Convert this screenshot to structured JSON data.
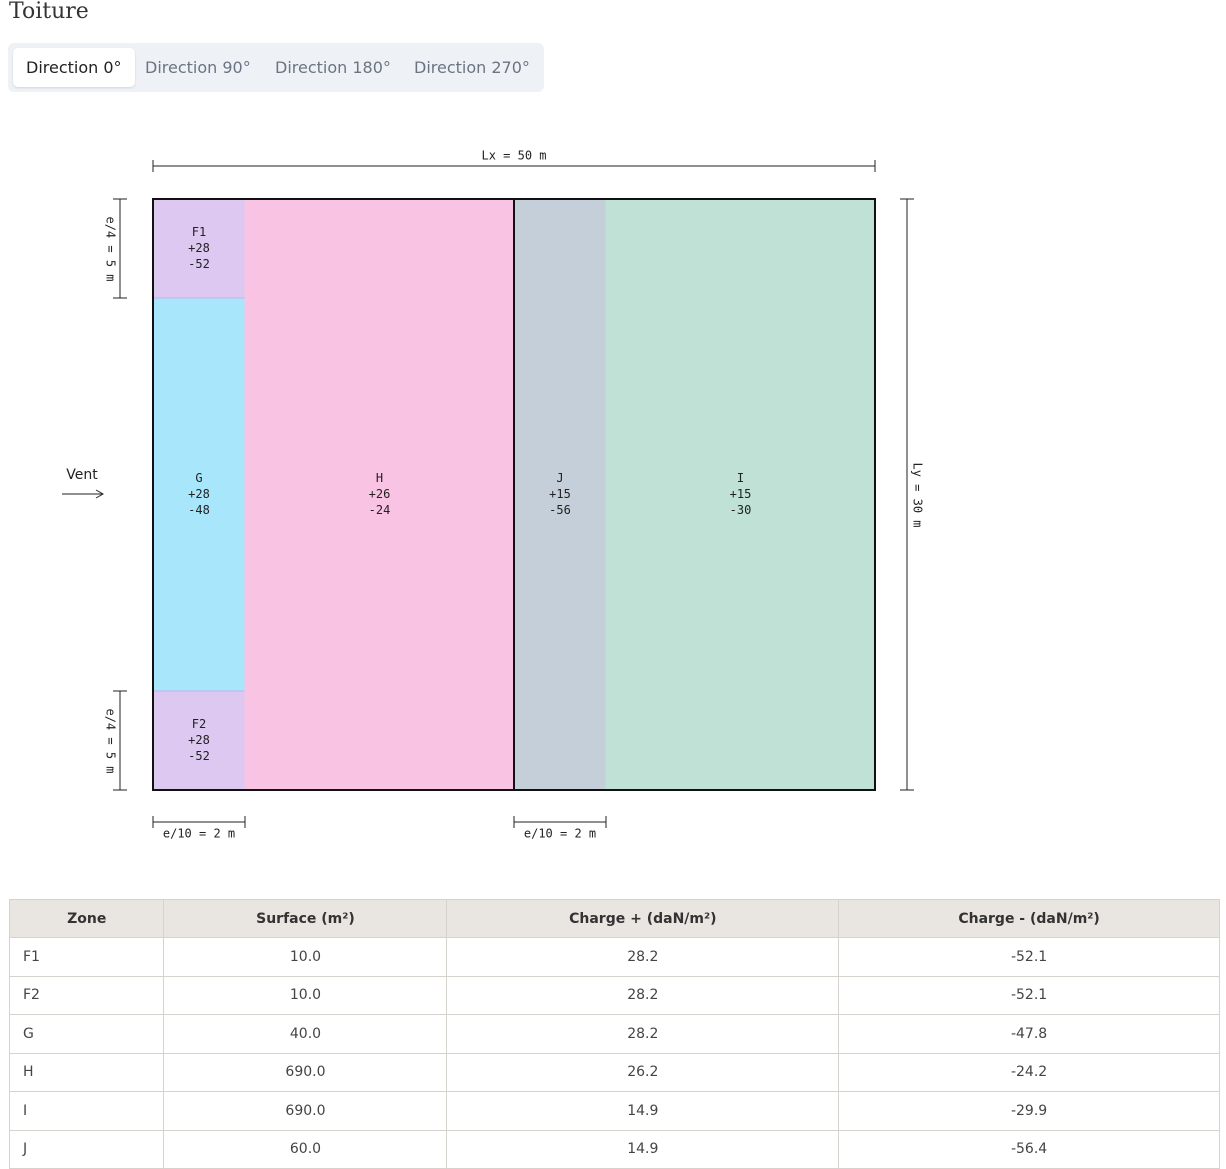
{
  "title": "Toiture",
  "tabs": [
    "Direction 0°",
    "Direction 90°",
    "Direction 180°",
    "Direction 270°"
  ],
  "diagram": {
    "length_label": "Lx = 50 m",
    "width_label": "Ly = 30 m",
    "edge_label_top": "e/4 = 5 m",
    "edge_label_bottom": "e/4 = 5 m",
    "strip_label_left": "e/10 = 2 m",
    "strip_label_right": "e/10 = 2 m",
    "wind": "Vent",
    "zones": [
      {
        "name": "F1",
        "plus": "+28",
        "minus": "-52"
      },
      {
        "name": "F2",
        "plus": "+28",
        "minus": "-52"
      },
      {
        "name": "G",
        "plus": "+28",
        "minus": "-48"
      },
      {
        "name": "H",
        "plus": "+26",
        "minus": "-24"
      },
      {
        "name": "J",
        "plus": "+15",
        "minus": "-56"
      },
      {
        "name": "I",
        "plus": "+15",
        "minus": "-30"
      }
    ]
  },
  "table": {
    "headers": [
      "Zone",
      "Surface (m²)",
      "Charge + (daN/m²)",
      "Charge - (daN/m²)"
    ],
    "rows": [
      [
        "F1",
        "10.0",
        "28.2",
        "-52.1"
      ],
      [
        "F2",
        "10.0",
        "28.2",
        "-52.1"
      ],
      [
        "G",
        "40.0",
        "28.2",
        "-47.8"
      ],
      [
        "H",
        "690.0",
        "26.2",
        "-24.2"
      ],
      [
        "I",
        "690.0",
        "14.9",
        "-29.9"
      ],
      [
        "J",
        "60.0",
        "14.9",
        "-56.4"
      ]
    ]
  }
}
